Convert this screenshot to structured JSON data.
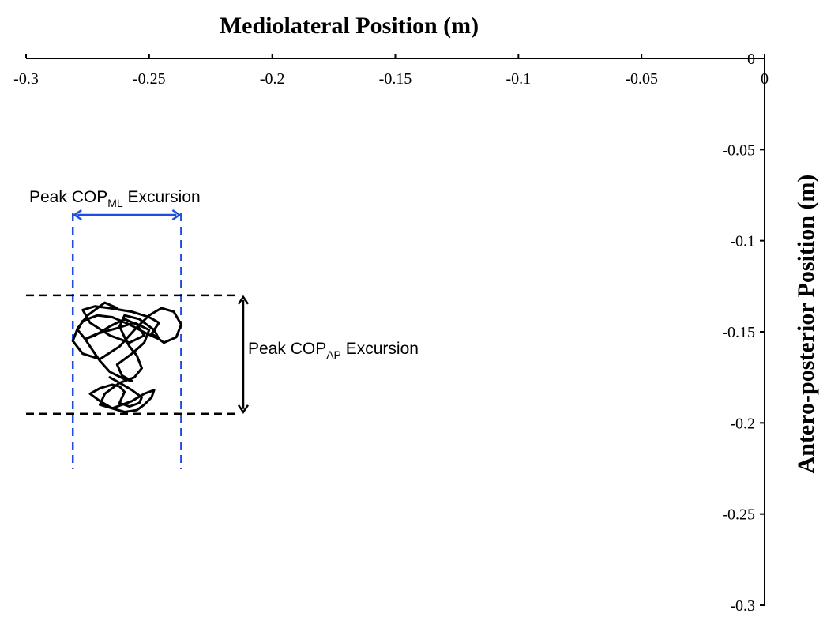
{
  "chart_data": {
    "type": "line",
    "xlabel": "Mediolateral Position (m)",
    "ylabel": "Antero-posterior Position (m)",
    "xlim": [
      -0.3,
      0
    ],
    "ylim": [
      -0.3,
      0
    ],
    "x_ticks": [
      "-0.3",
      "-0.25",
      "-0.2",
      "-0.15",
      "-0.1",
      "-0.05",
      "0"
    ],
    "y_ticks": [
      "0",
      "-0.05",
      "-0.1",
      "-0.15",
      "-0.2",
      "-0.25",
      "-0.3"
    ],
    "x_tick_values": [
      -0.3,
      -0.25,
      -0.2,
      -0.15,
      -0.1,
      -0.05,
      0
    ],
    "y_tick_values": [
      0,
      -0.05,
      -0.1,
      -0.15,
      -0.2,
      -0.25,
      -0.3
    ],
    "grid": false,
    "series": [
      {
        "color": "#000000",
        "x": [
          -0.263,
          -0.268,
          -0.275,
          -0.279,
          -0.281,
          -0.277,
          -0.27,
          -0.262,
          -0.256,
          -0.25,
          -0.245,
          -0.24,
          -0.237,
          -0.239,
          -0.244,
          -0.249,
          -0.246,
          -0.25,
          -0.257,
          -0.266,
          -0.272,
          -0.277,
          -0.274,
          -0.266,
          -0.258,
          -0.252,
          -0.255,
          -0.26,
          -0.266,
          -0.272,
          -0.276,
          -0.271,
          -0.263,
          -0.256,
          -0.25,
          -0.252,
          -0.257,
          -0.263,
          -0.261,
          -0.257,
          -0.26,
          -0.266,
          -0.27,
          -0.273,
          -0.276,
          -0.279,
          -0.277,
          -0.271,
          -0.265,
          -0.258,
          -0.251,
          -0.246,
          -0.248,
          -0.254,
          -0.26,
          -0.262,
          -0.26,
          -0.258,
          -0.255,
          -0.253,
          -0.256,
          -0.262,
          -0.268,
          -0.27,
          -0.265,
          -0.257,
          -0.252,
          -0.248,
          -0.249,
          -0.252,
          -0.255,
          -0.26,
          -0.265,
          -0.27,
          -0.274,
          -0.27,
          -0.265,
          -0.262,
          -0.26,
          -0.261,
          -0.262,
          -0.258,
          -0.254,
          -0.253,
          -0.257,
          -0.262,
          -0.266
        ],
        "y": [
          -0.137,
          -0.134,
          -0.141,
          -0.148,
          -0.155,
          -0.162,
          -0.165,
          -0.158,
          -0.149,
          -0.141,
          -0.137,
          -0.139,
          -0.146,
          -0.153,
          -0.156,
          -0.151,
          -0.145,
          -0.142,
          -0.139,
          -0.137,
          -0.136,
          -0.138,
          -0.145,
          -0.152,
          -0.156,
          -0.152,
          -0.146,
          -0.143,
          -0.147,
          -0.152,
          -0.154,
          -0.151,
          -0.148,
          -0.145,
          -0.149,
          -0.156,
          -0.162,
          -0.168,
          -0.174,
          -0.177,
          -0.176,
          -0.172,
          -0.166,
          -0.16,
          -0.154,
          -0.149,
          -0.144,
          -0.141,
          -0.142,
          -0.146,
          -0.151,
          -0.154,
          -0.149,
          -0.143,
          -0.141,
          -0.147,
          -0.153,
          -0.158,
          -0.163,
          -0.17,
          -0.175,
          -0.178,
          -0.184,
          -0.19,
          -0.192,
          -0.188,
          -0.184,
          -0.182,
          -0.186,
          -0.19,
          -0.193,
          -0.194,
          -0.192,
          -0.188,
          -0.184,
          -0.181,
          -0.179,
          -0.18,
          -0.183,
          -0.186,
          -0.189,
          -0.191,
          -0.189,
          -0.186,
          -0.182,
          -0.178,
          -0.175
        ]
      }
    ],
    "annotations": {
      "ml_excursion": {
        "label": "Peak COP",
        "subscript": "ML",
        "suffix": " Excursion",
        "color": "#1f4de0",
        "x_min": -0.281,
        "x_max": -0.237
      },
      "ap_excursion": {
        "label": "Peak COP",
        "subscript": "AP",
        "suffix": " Excursion",
        "color": "#000000",
        "y_top": -0.13,
        "y_bottom": -0.195
      }
    }
  }
}
